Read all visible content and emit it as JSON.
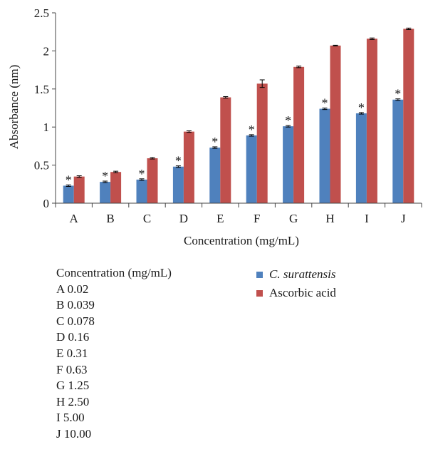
{
  "chart_data": {
    "type": "bar",
    "ylabel": "Absorbance (nm)",
    "xlabel": "Concentration (mg/mL)",
    "categories": [
      "A",
      "B",
      "C",
      "D",
      "E",
      "F",
      "G",
      "H",
      "I",
      "J"
    ],
    "ylim": [
      0,
      2.5
    ],
    "yticks": [
      "0",
      "0.5",
      "1",
      "1.5",
      "2",
      "2.5"
    ],
    "grid": false,
    "legend_position": "right",
    "significance_marker": "*",
    "series": [
      {
        "name": "C. surattensis",
        "color": "#4f81bd",
        "italic": true,
        "values": [
          0.23,
          0.28,
          0.31,
          0.48,
          0.73,
          0.89,
          1.01,
          1.24,
          1.18,
          1.36
        ],
        "errors": [
          0.01,
          0.01,
          0.01,
          0.01,
          0.01,
          0.01,
          0.01,
          0.01,
          0.01,
          0.01
        ],
        "significant": [
          true,
          true,
          true,
          true,
          true,
          true,
          true,
          true,
          true,
          true
        ]
      },
      {
        "name": "Ascorbic acid",
        "color": "#c0504d",
        "italic": false,
        "values": [
          0.35,
          0.41,
          0.59,
          0.94,
          1.39,
          1.57,
          1.79,
          2.07,
          2.16,
          2.29
        ],
        "errors": [
          0.01,
          0.01,
          0.01,
          0.01,
          0.01,
          0.05,
          0.01,
          0.005,
          0.01,
          0.01
        ],
        "significant": [
          false,
          false,
          false,
          false,
          false,
          false,
          false,
          false,
          false,
          false
        ]
      }
    ],
    "concentration_key": {
      "title": "Concentration (mg/mL)",
      "entries": [
        "A 0.02",
        "B 0.039",
        "C 0.078",
        "D 0.16",
        "E 0.31",
        "F 0.63",
        "G 1.25",
        "H 2.50",
        "I 5.00",
        "J 10.00"
      ]
    }
  }
}
